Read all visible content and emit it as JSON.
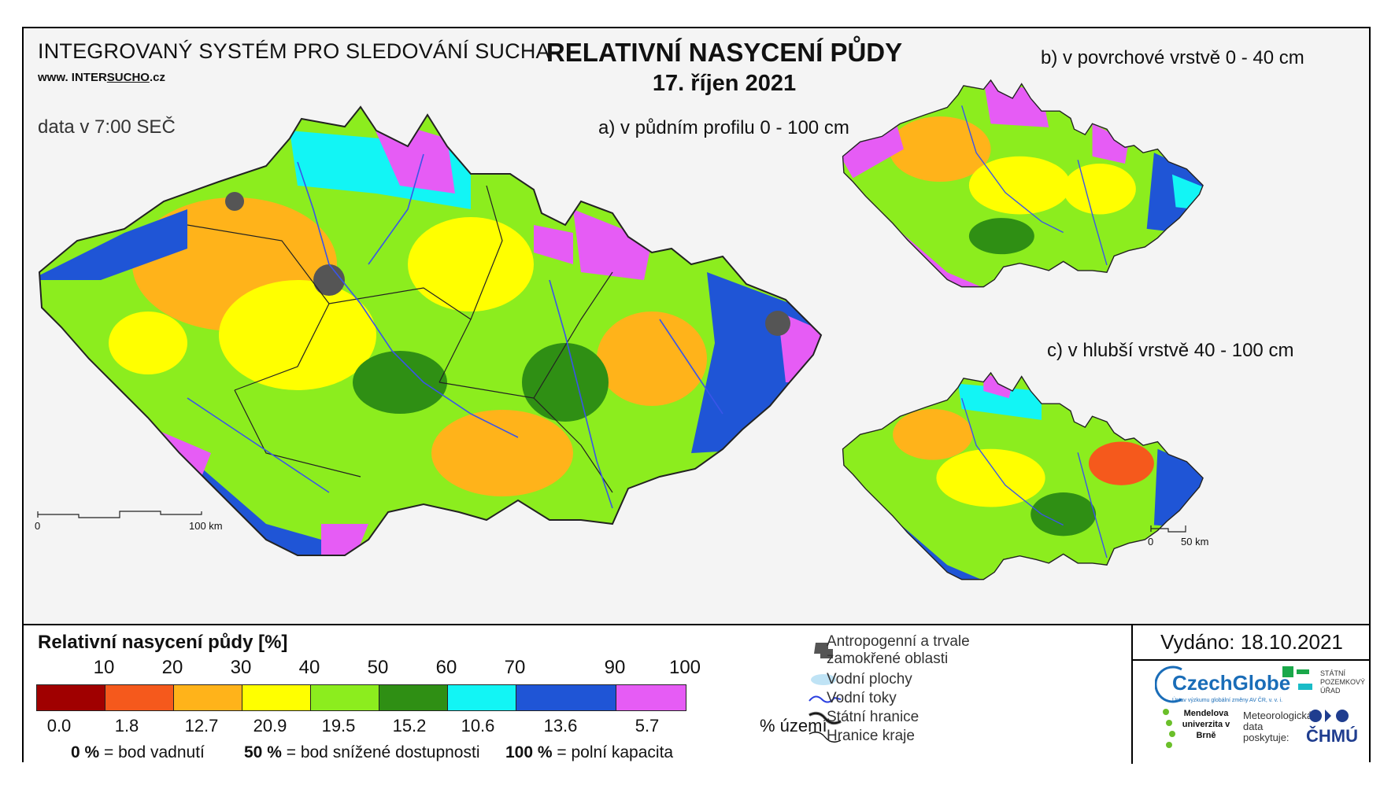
{
  "header": {
    "system_title": "INTEGROVANÝ SYSTÉM PRO SLEDOVÁNÍ SUCHA",
    "url_prefix": "www. INTER",
    "url_highlight": "SUCHO",
    "url_suffix": ".cz",
    "data_time": "data v 7:00 SEČ",
    "main_title": "RELATIVNÍ NASYCENÍ PŮDY",
    "date": "17. říjen 2021"
  },
  "maps": {
    "a_label": "a) v půdním profilu 0 - 100 cm",
    "b_label": "b) v povrchové vrstvě 0 - 40 cm",
    "c_label": "c) v hlubší vrstvě 40 - 100 cm",
    "scale_main": {
      "start": "0",
      "end": "100 km"
    },
    "scale_small": {
      "start": "0",
      "end": "50 km"
    }
  },
  "legend": {
    "title": "Relativní nasycení půdy [%]",
    "top_ticks": [
      "10",
      "20",
      "30",
      "40",
      "50",
      "60",
      "70",
      "90",
      "100"
    ],
    "classes": [
      {
        "color": "#a00000",
        "share": "0.0"
      },
      {
        "color": "#f5591c",
        "share": "1.8"
      },
      {
        "color": "#ffb31a",
        "share": "12.7"
      },
      {
        "color": "#ffff00",
        "share": "20.9"
      },
      {
        "color": "#8ced1e",
        "share": "19.5"
      },
      {
        "color": "#2f8f14",
        "share": "15.2"
      },
      {
        "color": "#12f5f5",
        "share": "10.6"
      },
      {
        "color": "#1f55d6",
        "share": "13.6"
      },
      {
        "color": "#e65cf5",
        "share": "5.7"
      }
    ],
    "unit": "% území",
    "foot": [
      {
        "value": "0 %",
        "text": "= bod vadnutí"
      },
      {
        "value": "50 %",
        "text": "= bod snížené dostupnosti"
      },
      {
        "value": "100 %",
        "text": "= polní kapacita"
      }
    ],
    "symbols": {
      "anthropogenic": "Antropogenní a trvale zamokřené oblasti",
      "water_bodies": "Vodní plochy",
      "rivers": "Vodní toky",
      "state_border": "Státní hranice",
      "region_border": "Hranice kraje"
    }
  },
  "footer": {
    "issued": "Vydáno: 18.10.2021",
    "czechglobe": "CzechGlobe",
    "czechglobe_sub": "Ústav výzkumu globální změny AV ČR, v. v. i.",
    "spu": "STÁTNÍ POZEMKOVÝ ÚŘAD",
    "mendel": "Mendelova univerzita v Brně",
    "met_data": "Meteorologická data poskytuje:",
    "chmu": "ČHMÚ"
  }
}
